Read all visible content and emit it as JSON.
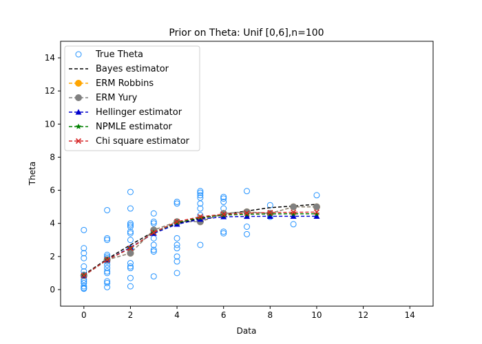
{
  "chart_data": {
    "type": "scatter",
    "title": "Prior on Theta: Unif [0,6],n=100",
    "xlabel": "Data",
    "ylabel": "Theta",
    "xlim": [
      -1,
      15
    ],
    "ylim": [
      -1,
      15
    ],
    "xticks": [
      0,
      2,
      4,
      6,
      8,
      10,
      12,
      14
    ],
    "yticks": [
      0,
      2,
      4,
      6,
      8,
      10,
      12,
      14
    ],
    "grid": false,
    "legend_position": "upper-left",
    "scatter": {
      "name": "True Theta",
      "color": "#1e90ff",
      "points": [
        [
          0,
          3.6
        ],
        [
          0,
          2.5
        ],
        [
          0,
          2.2
        ],
        [
          0,
          1.9
        ],
        [
          0,
          1.4
        ],
        [
          0,
          1.1
        ],
        [
          0,
          0.9
        ],
        [
          0,
          0.6
        ],
        [
          0,
          0.5
        ],
        [
          0,
          0.4
        ],
        [
          0,
          0.2
        ],
        [
          0,
          0.1
        ],
        [
          0,
          0.05
        ],
        [
          1,
          4.8
        ],
        [
          1,
          3.1
        ],
        [
          1,
          3.0
        ],
        [
          1,
          2.1
        ],
        [
          1,
          2.0
        ],
        [
          1,
          1.9
        ],
        [
          1,
          1.8
        ],
        [
          1,
          1.7
        ],
        [
          1,
          1.5
        ],
        [
          1,
          1.3
        ],
        [
          1,
          1.1
        ],
        [
          1,
          1.0
        ],
        [
          1,
          0.5
        ],
        [
          1,
          0.4
        ],
        [
          1,
          0.15
        ],
        [
          2,
          5.9
        ],
        [
          2,
          4.9
        ],
        [
          2,
          4.0
        ],
        [
          2,
          3.9
        ],
        [
          2,
          3.8
        ],
        [
          2,
          3.5
        ],
        [
          2,
          3.4
        ],
        [
          2,
          3.0
        ],
        [
          2,
          2.5
        ],
        [
          2,
          2.4
        ],
        [
          2,
          2.2
        ],
        [
          2,
          1.6
        ],
        [
          2,
          1.4
        ],
        [
          2,
          1.3
        ],
        [
          2,
          0.7
        ],
        [
          2,
          0.2
        ],
        [
          3,
          4.6
        ],
        [
          3,
          4.1
        ],
        [
          3,
          4.0
        ],
        [
          3,
          3.6
        ],
        [
          3,
          3.5
        ],
        [
          3,
          3.1
        ],
        [
          3,
          2.7
        ],
        [
          3,
          2.4
        ],
        [
          3,
          2.3
        ],
        [
          3,
          0.8
        ],
        [
          4,
          5.3
        ],
        [
          4,
          5.2
        ],
        [
          4,
          4.1
        ],
        [
          4,
          4.0
        ],
        [
          4,
          3.1
        ],
        [
          4,
          2.7
        ],
        [
          4,
          2.5
        ],
        [
          4,
          2.0
        ],
        [
          4,
          1.7
        ],
        [
          4,
          1.0
        ],
        [
          5,
          5.95
        ],
        [
          5,
          5.85
        ],
        [
          5,
          5.7
        ],
        [
          5,
          5.55
        ],
        [
          5,
          5.2
        ],
        [
          5,
          4.9
        ],
        [
          5,
          4.5
        ],
        [
          5,
          4.2
        ],
        [
          5,
          4.1
        ],
        [
          5,
          2.7
        ],
        [
          6,
          5.6
        ],
        [
          6,
          5.5
        ],
        [
          6,
          5.3
        ],
        [
          6,
          4.9
        ],
        [
          6,
          4.5
        ],
        [
          6,
          3.5
        ],
        [
          6,
          3.4
        ],
        [
          7,
          5.95
        ],
        [
          7,
          4.7
        ],
        [
          7,
          3.8
        ],
        [
          7,
          3.35
        ],
        [
          8,
          5.1
        ],
        [
          8,
          4.4
        ],
        [
          9,
          5.0
        ],
        [
          9,
          3.95
        ],
        [
          10,
          5.7
        ],
        [
          10,
          5.0
        ]
      ]
    },
    "series": [
      {
        "name": "Bayes estimator",
        "color": "#000000",
        "marker": "none",
        "x": [
          0,
          1,
          2,
          3,
          4,
          5,
          6,
          7,
          8,
          9,
          10
        ],
        "y": [
          0.9,
          1.85,
          2.7,
          3.5,
          4.0,
          4.3,
          4.55,
          4.75,
          4.95,
          5.05,
          5.15
        ]
      },
      {
        "name": "ERM Robbins",
        "color": "#ffa500",
        "marker": "circle",
        "x": [
          0,
          1,
          2,
          3,
          4,
          5,
          6,
          7,
          8,
          9,
          10
        ],
        "y": [
          0.85,
          1.8,
          2.2,
          3.6,
          4.1,
          4.1,
          4.6,
          4.7,
          4.6,
          5.0,
          5.0
        ]
      },
      {
        "name": "ERM Yury",
        "color": "#808080",
        "marker": "circle",
        "x": [
          0,
          1,
          2,
          3,
          4,
          5,
          6,
          7,
          8,
          9,
          10
        ],
        "y": [
          0.85,
          1.8,
          2.2,
          3.6,
          4.1,
          4.1,
          4.6,
          4.7,
          4.6,
          5.0,
          5.0
        ]
      },
      {
        "name": "Hellinger estimator",
        "color": "#0000cd",
        "marker": "triangle",
        "x": [
          0,
          1,
          2,
          3,
          4,
          5,
          6,
          7,
          8,
          9,
          10
        ],
        "y": [
          0.85,
          1.8,
          2.55,
          3.4,
          3.95,
          4.25,
          4.4,
          4.42,
          4.43,
          4.43,
          4.43
        ]
      },
      {
        "name": "NPMLE estimator",
        "color": "#008000",
        "marker": "star",
        "x": [
          0,
          1,
          2,
          3,
          4,
          5,
          6,
          7,
          8,
          9,
          10
        ],
        "y": [
          0.85,
          1.8,
          2.5,
          3.45,
          4.05,
          4.35,
          4.5,
          4.55,
          4.57,
          4.58,
          4.58
        ]
      },
      {
        "name": "Chi square estimator",
        "color": "#d62728",
        "marker": "x",
        "x": [
          0,
          1,
          2,
          3,
          4,
          5,
          6,
          7,
          8,
          9,
          10
        ],
        "y": [
          0.85,
          1.8,
          2.5,
          3.45,
          4.1,
          4.4,
          4.55,
          4.62,
          4.65,
          4.67,
          4.68
        ]
      }
    ]
  }
}
